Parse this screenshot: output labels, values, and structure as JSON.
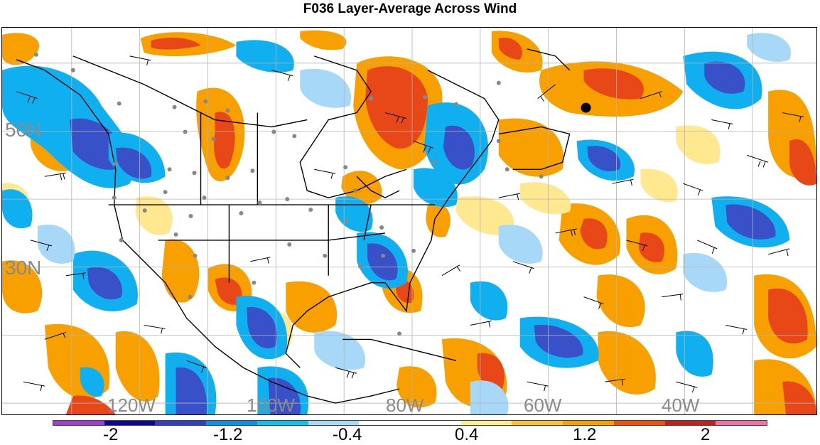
{
  "title": "F036 Layer-Average Across Wind",
  "map": {
    "lat_labels": [
      "50N",
      "30N"
    ],
    "lon_labels": [
      "120W",
      "100W",
      "80W",
      "60W",
      "40W"
    ]
  },
  "colorbar": {
    "colors": [
      "#a040d0",
      "#0a0a90",
      "#3040c0",
      "#1090e0",
      "#10c0f0",
      "#a8d8f8",
      "#ffffff",
      "#ffffff",
      "#ffeb90",
      "#fcc040",
      "#f7a000",
      "#f05010",
      "#c02020",
      "#f070a8"
    ],
    "labels": [
      "-2",
      "-1.2",
      "-0.4",
      "0.4",
      "1.2",
      "2"
    ]
  },
  "colors": {
    "strong_positive": "#e84818",
    "positive": "#f7a000",
    "weak_positive": "#ffe890",
    "weak_negative": "#a8d8f8",
    "negative": "#10b0f0",
    "strong_negative": "#3850c8",
    "coastline": "#000000",
    "stations": "#888888"
  }
}
